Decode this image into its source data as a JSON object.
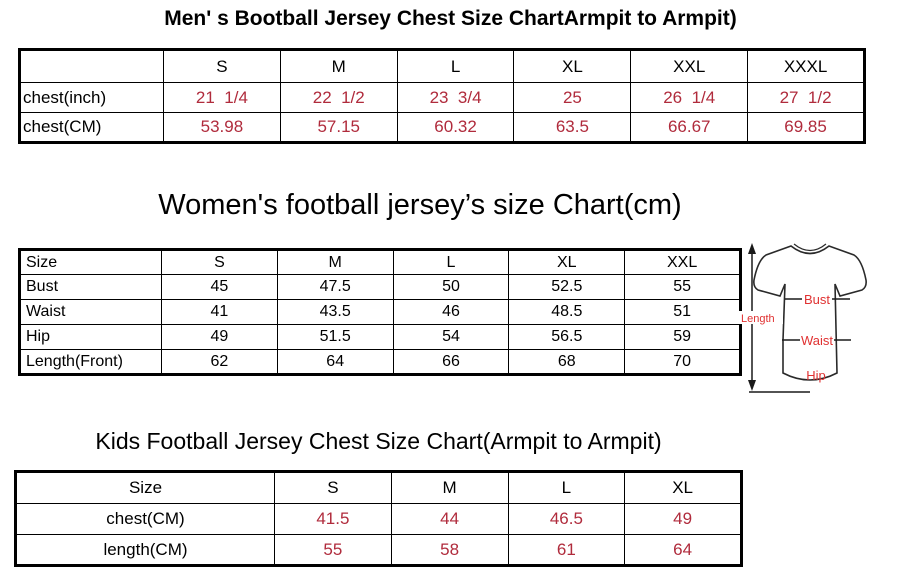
{
  "men_chart": {
    "title": "Men' s Bootball Jersey Chest Size ChartArmpit to Armpit)",
    "table": {
      "headers": [
        "",
        "S",
        "M",
        "L",
        "XL",
        "XXL",
        "XXXL"
      ],
      "rows": [
        [
          "chest(inch)",
          "21  1/4",
          "22  1/2",
          "23  3/4",
          "25",
          "26  1/4",
          "27  1/2"
        ],
        [
          "chest(CM)",
          "53.98",
          "57.15",
          "60.32",
          "63.5",
          "66.67",
          "69.85"
        ]
      ]
    }
  },
  "women_chart": {
    "title": "Women's football jersey’s size Chart(cm)",
    "table": {
      "headers": [
        "Size",
        "S",
        "M",
        "L",
        "XL",
        "XXL"
      ],
      "rows": [
        [
          "Bust",
          "45",
          "47.5",
          "50",
          "52.5",
          "55"
        ],
        [
          "Waist",
          "41",
          "43.5",
          "46",
          "48.5",
          "51"
        ],
        [
          "Hip",
          "49",
          "51.5",
          "54",
          "56.5",
          "59"
        ],
        [
          "Length(Front)",
          "62",
          "64",
          "66",
          "68",
          "70"
        ]
      ]
    },
    "diagram": {
      "length_label": "Length",
      "bust_label": "Bust",
      "waist_label": "Waist",
      "hip_label": "Hip"
    }
  },
  "kids_chart": {
    "title": "Kids Football Jersey Chest Size Chart(Armpit to Armpit)",
    "table": {
      "headers": [
        "Size",
        "S",
        "M",
        "L",
        "XL"
      ],
      "rows": [
        [
          "chest(CM)",
          "41.5",
          "44",
          "46.5",
          "49"
        ],
        [
          "length(CM)",
          "55",
          "58",
          "61",
          "64"
        ]
      ]
    }
  },
  "colors": {
    "value_red": "#b02b3c",
    "diagram_red": "#e03131",
    "border_black": "#000000"
  }
}
